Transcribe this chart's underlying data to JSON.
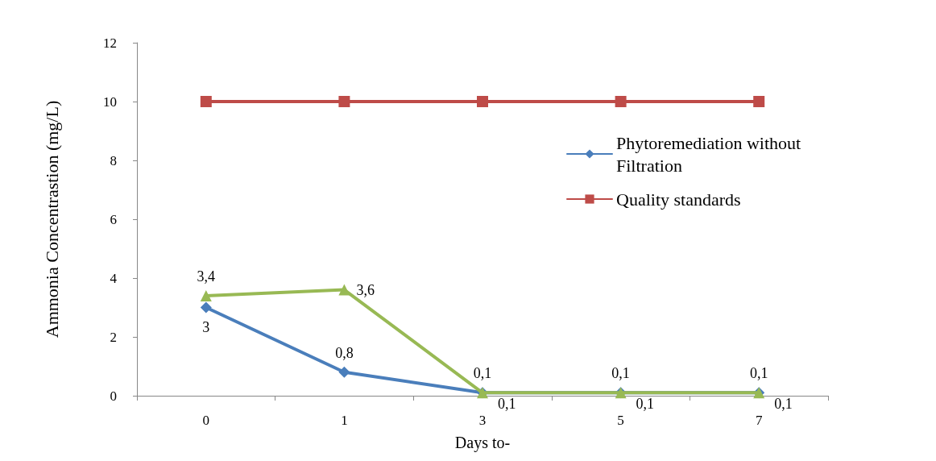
{
  "chart_data": {
    "type": "line",
    "xlabel": "Days to-",
    "ylabel": "Ammonia Concentrastion (mg/L)",
    "categories": [
      "0",
      "1",
      "3",
      "5",
      "7"
    ],
    "ylim": [
      0,
      12
    ],
    "yticks": [
      0,
      2,
      4,
      6,
      8,
      10,
      12
    ],
    "grid": false,
    "legend": "top right",
    "line_style": "solid",
    "series": [
      {
        "name": "Phytoremediation without Filtration",
        "color": "#4a7ebb",
        "marker": "diamond",
        "values": [
          3,
          0.8,
          0.1,
          0.1,
          0.1
        ],
        "value_labels": [
          "3",
          "0,8",
          "0,1",
          "0,1",
          "0,1"
        ]
      },
      {
        "name": "Quality standards",
        "color": "#be4b48",
        "marker": "square",
        "values": [
          10,
          10,
          10,
          10,
          10
        ]
      },
      {
        "color": "#98b954",
        "marker": "triangle",
        "values": [
          3.4,
          3.6,
          0.1,
          0.1,
          0.1
        ],
        "value_labels": [
          "3,4",
          "3,6",
          "0,1",
          "0,1",
          "0,1"
        ]
      }
    ]
  }
}
